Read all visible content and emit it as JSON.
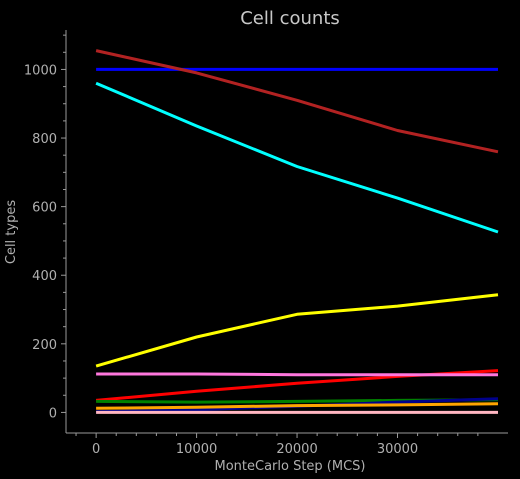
{
  "chart_data": {
    "type": "line",
    "title": "Cell counts",
    "xlabel": "MonteCarlo Step (MCS)",
    "ylabel": "Cell types",
    "xlim": [
      -3000,
      41000
    ],
    "ylim": [
      -60,
      1115
    ],
    "x_ticks": [
      0,
      10000,
      20000,
      30000
    ],
    "y_ticks": [
      0,
      200,
      400,
      600,
      800,
      1000
    ],
    "grid": false,
    "legend": "none",
    "style": {
      "background": "#000000",
      "axis_color": "#9a9a9a",
      "title_color": "#c8c8c8",
      "label_color": "#b0b0b0"
    },
    "series": [
      {
        "color": "#0000ff",
        "x": [
          0,
          10000,
          20000,
          30000,
          40000
        ],
        "y": [
          1000,
          1000,
          1000,
          1000,
          1000
        ]
      },
      {
        "color": "#b22222",
        "x": [
          0,
          10000,
          20000,
          30000,
          40000
        ],
        "y": [
          1055,
          990,
          910,
          822,
          760
        ]
      },
      {
        "color": "#00ffff",
        "x": [
          0,
          10000,
          20000,
          30000,
          40000
        ],
        "y": [
          960,
          835,
          717,
          625,
          526
        ]
      },
      {
        "color": "#ffff00",
        "x": [
          0,
          10000,
          20000,
          30000,
          40000
        ],
        "y": [
          135,
          220,
          286,
          310,
          343
        ]
      },
      {
        "color": "#ff0000",
        "x": [
          0,
          10000,
          20000,
          30000,
          40000
        ],
        "y": [
          35,
          62,
          85,
          105,
          122
        ]
      },
      {
        "color": "#ff77dd",
        "x": [
          0,
          10000,
          20000,
          30000,
          40000
        ],
        "y": [
          112,
          112,
          110,
          110,
          110
        ]
      },
      {
        "color": "#008000",
        "x": [
          0,
          10000,
          20000,
          30000,
          40000
        ],
        "y": [
          32,
          30,
          32,
          35,
          37
        ]
      },
      {
        "color": "#00008b",
        "x": [
          0,
          10000,
          20000,
          30000,
          40000
        ],
        "y": [
          2,
          8,
          18,
          30,
          40
        ]
      },
      {
        "color": "#ffa500",
        "x": [
          0,
          10000,
          20000,
          30000,
          40000
        ],
        "y": [
          12,
          15,
          20,
          22,
          25
        ]
      },
      {
        "color": "#ffb6c1",
        "x": [
          0,
          10000,
          20000,
          30000,
          40000
        ],
        "y": [
          0,
          0,
          0,
          0,
          0
        ]
      }
    ]
  }
}
